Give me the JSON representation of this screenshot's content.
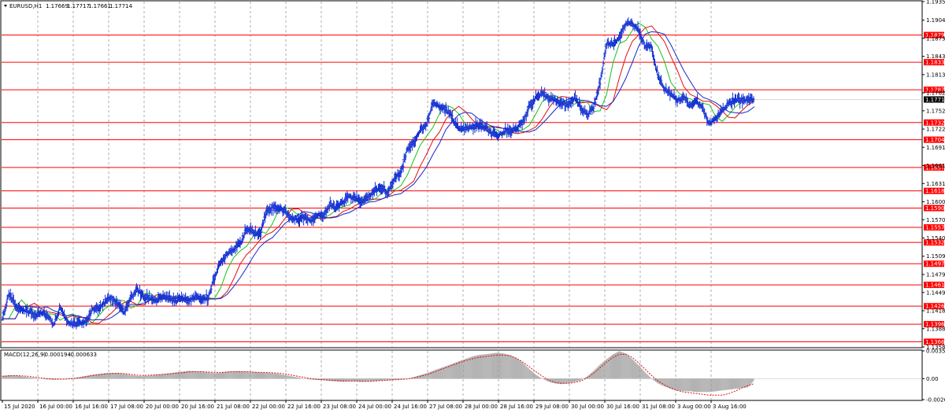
{
  "header": {
    "symbol": "EURUSD,H1",
    "open": "1.17669",
    "high": "1.17717",
    "low": "1.17661",
    "close": "1.17714"
  },
  "colors": {
    "candle": "#1432d2",
    "ma_fast": "#18c218",
    "ma_mid": "#e01010",
    "ma_slow": "#1428c8",
    "level": "#ff0000",
    "grid": "#9a9a9a",
    "macd_hist": "#a0a0a0",
    "macd_signal": "#e01010",
    "current_box": "#000000"
  },
  "chart_data": [
    {
      "type": "line",
      "name": "price",
      "x_labels": [
        "15 Jul 2020",
        "16 Jul 00:00",
        "16 Jul 16:00",
        "17 Jul 08:00",
        "20 Jul 00:00",
        "20 Jul 16:00",
        "21 Jul 08:00",
        "22 Jul 00:00",
        "22 Jul 16:00",
        "23 Jul 08:00",
        "24 Jul 00:00",
        "24 Jul 16:00",
        "27 Jul 08:00",
        "28 Jul 00:00",
        "28 Jul 16:00",
        "29 Jul 08:00",
        "30 Jul 00:00",
        "30 Jul 16:00",
        "31 Jul 08:00",
        "3 Aug 00:00",
        "3 Aug 16:00"
      ],
      "y_ticks": [
        "1.19350",
        "1.19040",
        "1.18735",
        "1.18435",
        "1.18130",
        "1.17825",
        "1.17525",
        "1.17220",
        "1.16915",
        "1.16610",
        "1.16310",
        "1.16005",
        "1.15705",
        "1.15400",
        "1.15095",
        "1.14790",
        "1.14490",
        "1.14185",
        "1.13885",
        "1.13580"
      ],
      "ylim": [
        1.1358,
        1.1935
      ],
      "horizontal_levels": [
        "1.18791",
        "1.18337",
        "1.17877",
        "1.17329",
        "1.17042",
        "1.16578",
        "1.16187",
        "1.15900",
        "1.15577",
        "1.15326",
        "1.14970",
        "1.14617",
        "1.14261",
        "1.13960",
        "1.13666"
      ],
      "current_price": "1.17714",
      "x": [
        0,
        8,
        16,
        24,
        32,
        40,
        48,
        56,
        64,
        72,
        80,
        88,
        96,
        104,
        112,
        120,
        128,
        136,
        144,
        152,
        160,
        168,
        176,
        184,
        192,
        200,
        208,
        216,
        224,
        232,
        240,
        248,
        256,
        264,
        272,
        280,
        288,
        296,
        304,
        312,
        320,
        328,
        336,
        344,
        352,
        360,
        368,
        376,
        384,
        392,
        400,
        408,
        416,
        424,
        432,
        440,
        448,
        456,
        464,
        472,
        480,
        488,
        496,
        504,
        512,
        520,
        528,
        536,
        544,
        552,
        560,
        568,
        576,
        584,
        592,
        600,
        608,
        616,
        624,
        632,
        640,
        648,
        656,
        664,
        672,
        680,
        688,
        696,
        704,
        712,
        720,
        728,
        736,
        744,
        752,
        760,
        768,
        776,
        784,
        792,
        800,
        808,
        816,
        824,
        832,
        840,
        848,
        856,
        864,
        872,
        880,
        888,
        896,
        904,
        912,
        920,
        928,
        936
      ],
      "values": [
        1.1405,
        1.1445,
        1.1428,
        1.142,
        1.1418,
        1.1412,
        1.1415,
        1.141,
        1.1395,
        1.1425,
        1.1402,
        1.1395,
        1.1397,
        1.14,
        1.142,
        1.1425,
        1.1432,
        1.144,
        1.143,
        1.1415,
        1.144,
        1.1455,
        1.144,
        1.144,
        1.1435,
        1.1442,
        1.1438,
        1.1435,
        1.144,
        1.1435,
        1.1442,
        1.1438,
        1.144,
        1.1475,
        1.15,
        1.1515,
        1.1522,
        1.153,
        1.1555,
        1.155,
        1.1545,
        1.1582,
        1.1592,
        1.159,
        1.1585,
        1.1572,
        1.1572,
        1.1575,
        1.157,
        1.1578,
        1.158,
        1.1595,
        1.159,
        1.16,
        1.161,
        1.1605,
        1.16,
        1.161,
        1.162,
        1.1625,
        1.1615,
        1.164,
        1.165,
        1.169,
        1.17,
        1.172,
        1.173,
        1.1765,
        1.176,
        1.1755,
        1.174,
        1.1722,
        1.1722,
        1.1725,
        1.1728,
        1.1725,
        1.1715,
        1.171,
        1.1718,
        1.172,
        1.1722,
        1.1735,
        1.176,
        1.1775,
        1.178,
        1.1775,
        1.177,
        1.1765,
        1.1762,
        1.1775,
        1.1758,
        1.1745,
        1.176,
        1.18,
        1.1865,
        1.1865,
        1.1875,
        1.1898,
        1.19,
        1.1885,
        1.186,
        1.186,
        1.181,
        1.179,
        1.178,
        1.177,
        1.1775,
        1.176,
        1.177,
        1.1755,
        1.173,
        1.174,
        1.1752,
        1.1765,
        1.177,
        1.177,
        1.1772,
        1.1771
      ]
    },
    {
      "type": "line",
      "name": "MACD(12,26,9)",
      "header_values": [
        "-0.000194",
        "-0.000633"
      ],
      "y_ticks": [
        "0.00354",
        "0.00",
        "-0.00267"
      ],
      "ylim": [
        -0.00267,
        0.00354
      ],
      "x": [
        0,
        8,
        16,
        24,
        32,
        40,
        48,
        56,
        64,
        72,
        80,
        88,
        96,
        104,
        112,
        120,
        128,
        136,
        144,
        152,
        160,
        168,
        176,
        184,
        192,
        200,
        208,
        216,
        224,
        232,
        240,
        248,
        256,
        264,
        272,
        280,
        288,
        296,
        304,
        312,
        320,
        328,
        336,
        344,
        352,
        360,
        368,
        376,
        384,
        392,
        400,
        408,
        416,
        424,
        432,
        440,
        448,
        456,
        464,
        472,
        480,
        488,
        496,
        504,
        512,
        520,
        528,
        536,
        544,
        552,
        560,
        568,
        576,
        584,
        592,
        600,
        608,
        616,
        624,
        632,
        640,
        648,
        656,
        664,
        672,
        680,
        688,
        696,
        704,
        712,
        720,
        728,
        736,
        744,
        752,
        760,
        768,
        776,
        784,
        792,
        800,
        808,
        816,
        824,
        832,
        840,
        848,
        856,
        864,
        872,
        880,
        888,
        896,
        904,
        912,
        920,
        928,
        936
      ],
      "series": [
        {
          "name": "main",
          "values": [
            0.00035,
            0.00045,
            0.0004,
            0.0003,
            0.0002,
            0.0001,
            0.0,
            -0.0001,
            -0.00015,
            -5e-05,
            5e-05,
            0.0001,
            0.0002,
            0.00035,
            0.0005,
            0.0006,
            0.0007,
            0.00075,
            0.0007,
            0.0006,
            0.00045,
            0.00035,
            0.0003,
            0.0004,
            0.0005,
            0.0006,
            0.0007,
            0.0008,
            0.0009,
            0.001,
            0.00095,
            0.0009,
            0.0008,
            0.0007,
            0.00075,
            0.0009,
            0.00095,
            0.00095,
            0.0009,
            0.00085,
            0.0008,
            0.00075,
            0.0007,
            0.0006,
            0.00045,
            0.0003,
            0.00015,
            0.0,
            -0.0001,
            -0.00015,
            -0.0002,
            -0.0003,
            -0.00035,
            -0.0004,
            -0.00035,
            -0.00035,
            -0.0004,
            -0.00035,
            -0.0003,
            -0.00025,
            -0.0002,
            -0.00015,
            -0.0001,
            0.0,
            0.0002,
            0.00045,
            0.0007,
            0.001,
            0.0013,
            0.0016,
            0.0019,
            0.0022,
            0.0025,
            0.0028,
            0.003,
            0.0031,
            0.0032,
            0.0033,
            0.0032,
            0.003,
            0.0026,
            0.002,
            0.0012,
            0.0005,
            0.0,
            -0.0004,
            -0.0006,
            -0.0007,
            -0.0006,
            -0.0004,
            -0.0002,
            0.0003,
            0.001,
            0.0018,
            0.0025,
            0.0031,
            0.0035,
            0.0032,
            0.0025,
            0.0017,
            0.0008,
            0.0,
            -0.0006,
            -0.001,
            -0.0013,
            -0.0015,
            -0.0016,
            -0.0016,
            -0.0017,
            -0.0017,
            -0.0017,
            -0.0016,
            -0.0015,
            -0.0014,
            -0.0013,
            -0.0012,
            -0.0011,
            -0.00019
          ]
        },
        {
          "name": "signal",
          "values": [
            0.0003,
            0.00035,
            0.0004,
            0.00035,
            0.0003,
            0.0002,
            0.0001,
            0.0,
            -5e-05,
            -8e-05,
            -5e-05,
            0.0,
            0.0001,
            0.00025,
            0.0004,
            0.0005,
            0.0006,
            0.00065,
            0.0007,
            0.00065,
            0.00055,
            0.00045,
            0.0004,
            0.00045,
            0.0005,
            0.00055,
            0.0006,
            0.0007,
            0.00075,
            0.00085,
            0.0009,
            0.0009,
            0.00085,
            0.0008,
            0.0008,
            0.00085,
            0.0009,
            0.0009,
            0.0009,
            0.00085,
            0.0008,
            0.0008,
            0.00075,
            0.0007,
            0.0006,
            0.00045,
            0.0003,
            0.00015,
            0.0,
            -0.0001,
            -0.00015,
            -0.0002,
            -0.00025,
            -0.0003,
            -0.0003,
            -0.0003,
            -0.00035,
            -0.00035,
            -0.0003,
            -0.00025,
            -0.0002,
            -0.00015,
            -0.0001,
            -5e-05,
            0.0001,
            0.0003,
            0.0005,
            0.0008,
            0.0011,
            0.0014,
            0.0017,
            0.002,
            0.0023,
            0.0025,
            0.0027,
            0.0028,
            0.0029,
            0.003,
            0.003,
            0.0029,
            0.0026,
            0.0021,
            0.0015,
            0.0009,
            0.0003,
            -0.0002,
            -0.0005,
            -0.0006,
            -0.0006,
            -0.0005,
            -0.0003,
            0.0001,
            0.0007,
            0.0014,
            0.0021,
            0.0027,
            0.0031,
            0.0031,
            0.0027,
            0.002,
            0.0012,
            0.0004,
            -0.0003,
            -0.0008,
            -0.0012,
            -0.0015,
            -0.0017,
            -0.0018,
            -0.0019,
            -0.002,
            -0.0021,
            -0.0021,
            -0.0021,
            -0.0019,
            -0.0016,
            -0.0012,
            -0.0009,
            -0.00063
          ]
        }
      ]
    }
  ]
}
